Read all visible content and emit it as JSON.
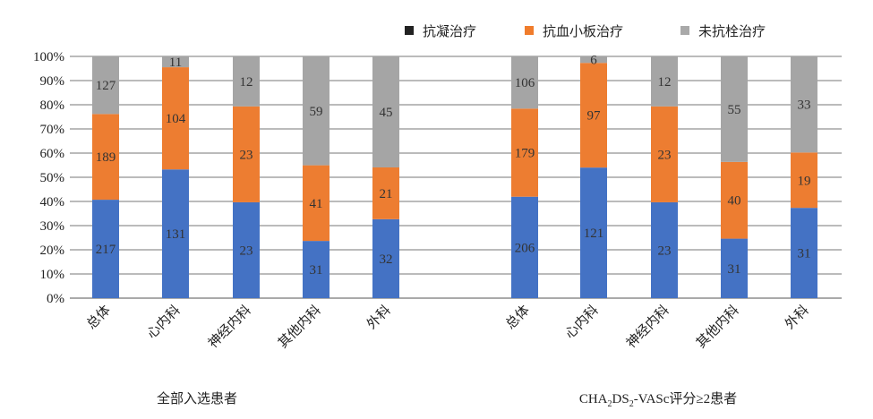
{
  "chart_data": {
    "type": "bar",
    "stacked": "percent",
    "ylim": [
      0,
      100
    ],
    "yticks": [
      "0%",
      "10%",
      "20%",
      "30%",
      "40%",
      "50%",
      "60%",
      "70%",
      "80%",
      "90%",
      "100%"
    ],
    "grid": true,
    "legend_position": "top-right",
    "legend": [
      {
        "name": "抗凝治疗",
        "swatch_color": "#222222"
      },
      {
        "name": "抗血小板治疗",
        "swatch_color": "#f07c2c"
      },
      {
        "name": "未抗栓治疗",
        "swatch_color": "#a9a9a9"
      }
    ],
    "series_colors": [
      "#4472c4",
      "#ed7d31",
      "#a5a5a5"
    ],
    "groups": [
      {
        "label_parts": [
          "全部入选患者"
        ],
        "categories": [
          "总体",
          "心内科",
          "神经内科",
          "其他内科",
          "外科"
        ],
        "series": [
          {
            "name": "抗凝治疗",
            "values": [
              217,
              131,
              23,
              31,
              32
            ]
          },
          {
            "name": "抗血小板治疗",
            "values": [
              189,
              104,
              23,
              41,
              21
            ]
          },
          {
            "name": "未抗栓治疗",
            "values": [
              127,
              11,
              12,
              59,
              45
            ]
          }
        ]
      },
      {
        "label_parts": [
          "CHA",
          "2",
          "DS",
          "2",
          "-VASc评分≥2患者"
        ],
        "categories": [
          "总体",
          "心内科",
          "神经内科",
          "其他内科",
          "外科"
        ],
        "series": [
          {
            "name": "抗凝治疗",
            "values": [
              206,
              121,
              23,
              31,
              31
            ]
          },
          {
            "name": "抗血小板治疗",
            "values": [
              179,
              97,
              23,
              40,
              19
            ]
          },
          {
            "name": "未抗栓治疗",
            "values": [
              106,
              6,
              12,
              55,
              33
            ]
          }
        ]
      }
    ]
  }
}
